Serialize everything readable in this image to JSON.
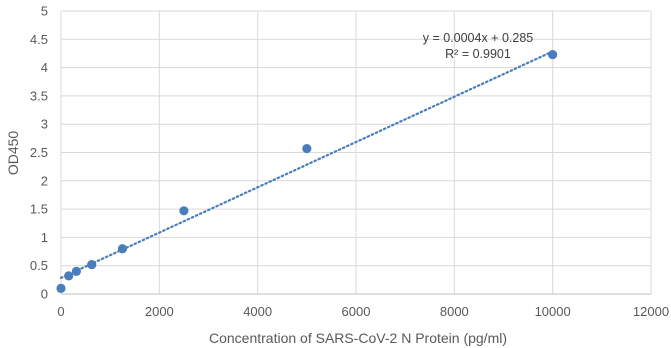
{
  "chart_data": {
    "type": "scatter",
    "title": "",
    "xlabel": "Concentration of SARS-CoV-2 N Protein (pg/ml)",
    "ylabel": "OD450",
    "xlim": [
      0,
      12000
    ],
    "ylim": [
      0,
      5
    ],
    "x_ticks": [
      0,
      2000,
      4000,
      6000,
      8000,
      10000,
      12000
    ],
    "y_ticks": [
      0,
      0.5,
      1,
      1.5,
      2,
      2.5,
      3,
      3.5,
      4,
      4.5,
      5
    ],
    "x_tick_labels": [
      "0",
      "2000",
      "4000",
      "6000",
      "8000",
      "10000",
      "12000"
    ],
    "y_tick_labels": [
      "0",
      "0.5",
      "1",
      "1.5",
      "2",
      "2.5",
      "3",
      "3.5",
      "4",
      "4.5",
      "5"
    ],
    "grid": true,
    "legend": "none",
    "series": [
      {
        "x": [
          0,
          156.25,
          312.5,
          625,
          1250,
          2500,
          5000,
          10000
        ],
        "y": [
          0.1,
          0.32,
          0.4,
          0.52,
          0.8,
          1.47,
          2.57,
          4.23
        ]
      }
    ],
    "trendline": {
      "type": "linear",
      "slope": 0.0004,
      "intercept": 0.285,
      "x_range": [
        0,
        10000
      ],
      "style": "dotted"
    },
    "annotations": {
      "equation": "y = 0.0004x + 0.285",
      "r_squared": "R² = 0.9901"
    },
    "colors": {
      "marker": "#4a7ebb",
      "trendline": "#4a7ebb",
      "grid": "#d9d9d9",
      "axis_text": "#595959"
    }
  }
}
